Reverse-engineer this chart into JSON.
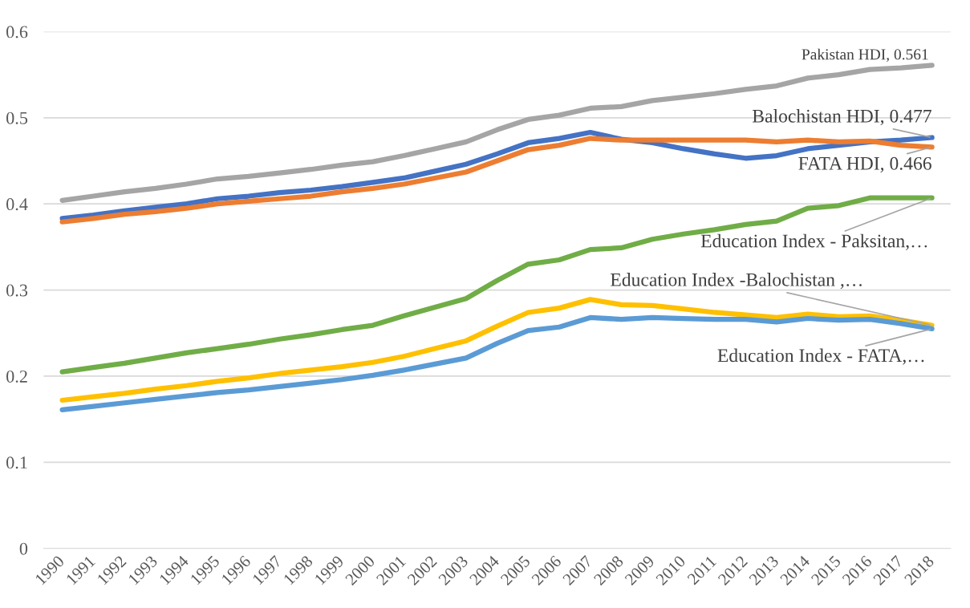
{
  "chart_data": {
    "type": "line",
    "categories": [
      "1990",
      "1991",
      "1992",
      "1993",
      "1994",
      "1995",
      "1996",
      "1997",
      "1998",
      "1999",
      "2000",
      "2001",
      "2002",
      "2003",
      "2004",
      "2005",
      "2006",
      "2007",
      "2008",
      "2009",
      "2010",
      "2011",
      "2012",
      "2013",
      "2014",
      "2015",
      "2016",
      "2017",
      "2018"
    ],
    "series": [
      {
        "color": "#4472c4",
        "values": [
          0.383,
          0.387,
          0.392,
          0.396,
          0.4,
          0.406,
          0.409,
          0.413,
          0.416,
          0.42,
          0.425,
          0.43,
          0.438,
          0.446,
          0.458,
          0.471,
          0.476,
          0.483,
          0.475,
          0.471,
          0.464,
          0.458,
          0.453,
          0.456,
          0.464,
          0.468,
          0.472,
          0.474,
          0.477
        ]
      },
      {
        "color": "#ed7d31",
        "values": [
          0.379,
          0.383,
          0.388,
          0.391,
          0.395,
          0.4,
          0.403,
          0.406,
          0.409,
          0.414,
          0.418,
          0.423,
          0.43,
          0.437,
          0.45,
          0.463,
          0.468,
          0.476,
          0.474,
          0.474,
          0.474,
          0.474,
          0.474,
          0.472,
          0.474,
          0.472,
          0.473,
          0.468,
          0.466
        ]
      },
      {
        "color": "#a5a5a5",
        "values": [
          0.404,
          0.409,
          0.414,
          0.418,
          0.423,
          0.429,
          0.432,
          0.436,
          0.44,
          0.445,
          0.449,
          0.456,
          0.464,
          0.472,
          0.486,
          0.498,
          0.503,
          0.511,
          0.513,
          0.52,
          0.524,
          0.528,
          0.533,
          0.537,
          0.546,
          0.55,
          0.556,
          0.558,
          0.561
        ]
      },
      {
        "color": "#ffc000",
        "values": [
          0.172,
          0.176,
          0.18,
          0.185,
          0.189,
          0.194,
          0.198,
          0.203,
          0.207,
          0.211,
          0.216,
          0.223,
          0.232,
          0.241,
          0.258,
          0.274,
          0.279,
          0.289,
          0.283,
          0.282,
          0.278,
          0.274,
          0.271,
          0.268,
          0.272,
          0.269,
          0.27,
          0.265,
          0.259
        ]
      },
      {
        "color": "#5b9bd5",
        "values": [
          0.161,
          0.165,
          0.169,
          0.173,
          0.177,
          0.181,
          0.184,
          0.188,
          0.192,
          0.196,
          0.201,
          0.207,
          0.214,
          0.221,
          0.238,
          0.253,
          0.257,
          0.268,
          0.266,
          0.268,
          0.267,
          0.266,
          0.266,
          0.263,
          0.267,
          0.265,
          0.266,
          0.261,
          0.255
        ]
      },
      {
        "color": "#70ad47",
        "values": [
          0.205,
          0.21,
          0.215,
          0.221,
          0.227,
          0.232,
          0.237,
          0.243,
          0.248,
          0.254,
          0.259,
          0.27,
          0.28,
          0.29,
          0.311,
          0.33,
          0.335,
          0.347,
          0.349,
          0.359,
          0.365,
          0.37,
          0.376,
          0.38,
          0.395,
          0.398,
          0.407,
          0.407,
          0.407
        ]
      }
    ],
    "annotations": [
      {
        "text": "Balochistan HDI, 0.477",
        "x": "2018",
        "y": 0.477
      },
      {
        "text": "FATA HDI, 0.466",
        "x": "2018",
        "y": 0.466
      },
      {
        "text": "Pakistan HDI, 0.561",
        "x": "2018",
        "y": 0.561
      },
      {
        "text": "Education Index -Balochistan ,…",
        "x": "2018",
        "y": 0.259
      },
      {
        "text": "Education Index - FATA,…",
        "x": "2018",
        "y": 0.255
      },
      {
        "text": "Education Index - Paksitan,…",
        "x": "2018",
        "y": 0.407
      }
    ],
    "ylim": [
      0,
      0.6
    ],
    "yticks": [
      0,
      0.1,
      0.2,
      0.3,
      0.4,
      0.5,
      0.6
    ],
    "grid": "y",
    "legend": false,
    "marker": "none",
    "line_style": "solid"
  }
}
